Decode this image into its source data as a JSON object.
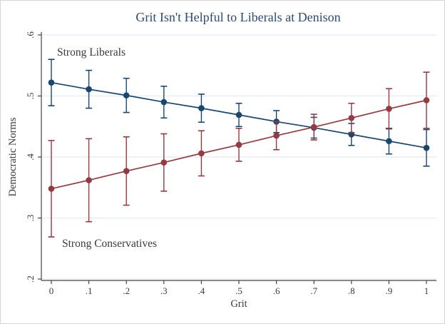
{
  "colors": {
    "liberals": "#1a476f",
    "conservatives": "#953a41",
    "grid": "#e4ebf4",
    "axis": "#454545",
    "title": "#2d4a70",
    "text": "#3a3a3a"
  },
  "chart_data": {
    "type": "line",
    "title": "Grit Isn't Helpful to Liberals at Denison",
    "xlabel": "Grit",
    "ylabel": "Democratic Norms",
    "x": [
      0,
      0.1,
      0.2,
      0.3,
      0.4,
      0.5,
      0.6,
      0.7,
      0.8,
      0.9,
      1
    ],
    "x_tick_labels": [
      "0",
      ".1",
      ".2",
      ".3",
      ".4",
      ".5",
      ".6",
      ".7",
      ".8",
      ".9",
      "1"
    ],
    "y_tick_values": [
      0.2,
      0.3,
      0.4,
      0.5,
      0.6
    ],
    "y_tick_labels": [
      ".2",
      ".3",
      ".4",
      ".5",
      ".6"
    ],
    "xlim": [
      0,
      1
    ],
    "ylim": [
      0.2,
      0.6
    ],
    "grid": "horizontal",
    "legend_position": "none",
    "marker": "circle",
    "error_bars": true,
    "series": [
      {
        "name": "Strong Liberals",
        "color": "#1a476f",
        "values": [
          0.522,
          0.511,
          0.501,
          0.49,
          0.48,
          0.469,
          0.458,
          0.448,
          0.437,
          0.426,
          0.415
        ],
        "ci_lower": [
          0.484,
          0.48,
          0.473,
          0.464,
          0.457,
          0.45,
          0.44,
          0.431,
          0.419,
          0.405,
          0.385
        ],
        "ci_upper": [
          0.56,
          0.542,
          0.529,
          0.516,
          0.503,
          0.488,
          0.476,
          0.465,
          0.455,
          0.447,
          0.445
        ]
      },
      {
        "name": "Strong Conservatives",
        "color": "#953a41",
        "values": [
          0.348,
          0.362,
          0.377,
          0.391,
          0.406,
          0.42,
          0.435,
          0.449,
          0.464,
          0.479,
          0.493
        ],
        "ci_lower": [
          0.269,
          0.294,
          0.321,
          0.344,
          0.369,
          0.393,
          0.412,
          0.428,
          0.44,
          0.446,
          0.447
        ],
        "ci_upper": [
          0.427,
          0.43,
          0.433,
          0.438,
          0.443,
          0.447,
          0.458,
          0.47,
          0.488,
          0.512,
          0.539
        ]
      }
    ],
    "annotations": [
      {
        "text": "Strong Liberals",
        "series": "Strong Liberals"
      },
      {
        "text": "Strong Conservatives",
        "series": "Strong Conservatives"
      }
    ]
  }
}
